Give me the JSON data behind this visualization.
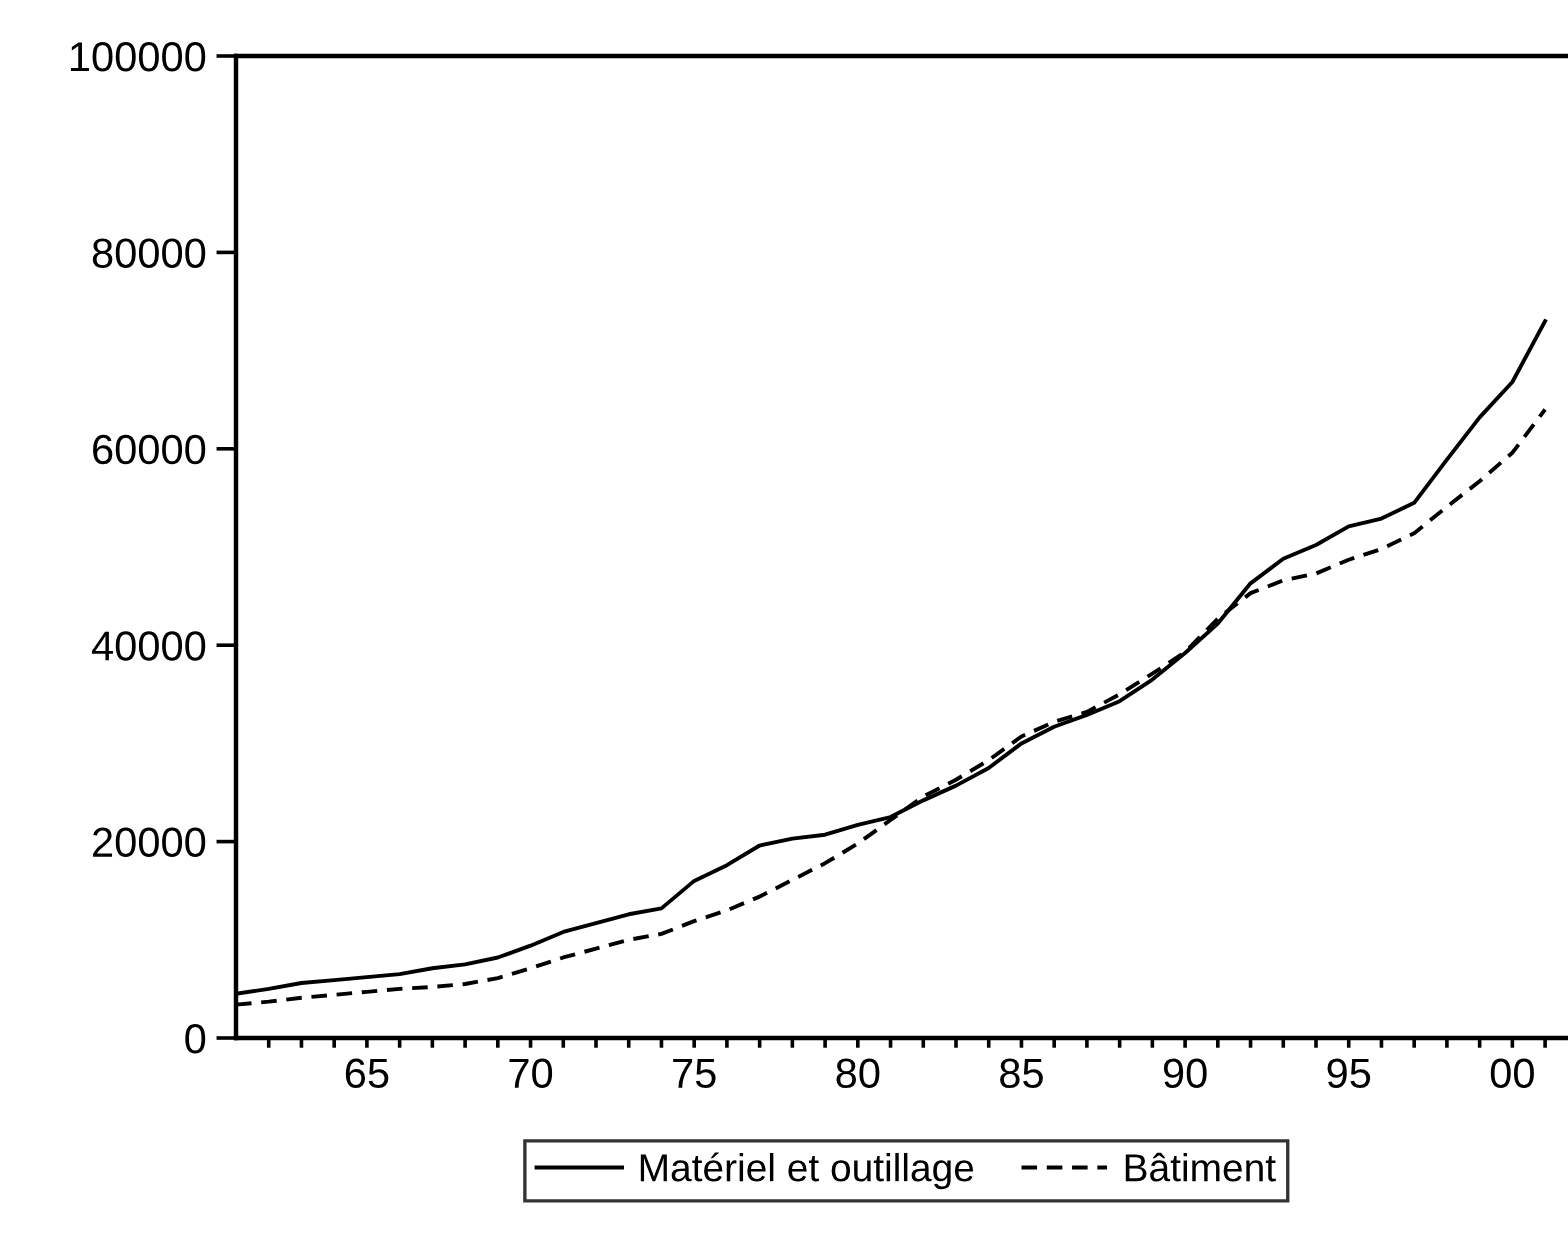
{
  "chart_data": {
    "type": "line",
    "x": [
      1961,
      1962,
      1963,
      1964,
      1965,
      1966,
      1967,
      1968,
      1969,
      1970,
      1971,
      1972,
      1973,
      1974,
      1975,
      1976,
      1977,
      1978,
      1979,
      1980,
      1981,
      1982,
      1983,
      1984,
      1985,
      1986,
      1987,
      1988,
      1989,
      1990,
      1991,
      1992,
      1993,
      1994,
      1995,
      1996,
      1997,
      1998,
      1999,
      2000,
      2001
    ],
    "series": [
      {
        "name": "Matériel et outillage",
        "color": "#000000",
        "line_style": "solid",
        "values": [
          4500,
          5000,
          5600,
          5900,
          6200,
          6500,
          7100,
          7500,
          8200,
          9400,
          10800,
          11700,
          12600,
          13200,
          16000,
          17600,
          19600,
          20300,
          20700,
          21700,
          22500,
          24200,
          25700,
          27500,
          30000,
          31700,
          32900,
          34300,
          36500,
          39200,
          42200,
          46300,
          48800,
          50200,
          52100,
          52900,
          54500,
          58900,
          63200,
          66800,
          73000
        ]
      },
      {
        "name": "Bâtiment",
        "color": "#000000",
        "line_style": "dashed",
        "values": [
          3400,
          3700,
          4100,
          4400,
          4700,
          5000,
          5200,
          5500,
          6100,
          7100,
          8200,
          9100,
          10000,
          10600,
          11900,
          13000,
          14400,
          16100,
          17800,
          19800,
          22200,
          24600,
          26300,
          28300,
          30700,
          32200,
          33200,
          35000,
          37100,
          39300,
          42700,
          45300,
          46600,
          47300,
          48700,
          49800,
          51400,
          54100,
          56700,
          59600,
          64000
        ]
      }
    ],
    "xlim": [
      1961,
      2001.7
    ],
    "xticks": [
      {
        "value": 1962,
        "label": null
      },
      {
        "value": 1963,
        "label": null
      },
      {
        "value": 1964,
        "label": null
      },
      {
        "value": 1965,
        "label": "65"
      },
      {
        "value": 1966,
        "label": null
      },
      {
        "value": 1967,
        "label": null
      },
      {
        "value": 1968,
        "label": null
      },
      {
        "value": 1969,
        "label": null
      },
      {
        "value": 1970,
        "label": "70"
      },
      {
        "value": 1971,
        "label": null
      },
      {
        "value": 1972,
        "label": null
      },
      {
        "value": 1973,
        "label": null
      },
      {
        "value": 1974,
        "label": null
      },
      {
        "value": 1975,
        "label": "75"
      },
      {
        "value": 1976,
        "label": null
      },
      {
        "value": 1977,
        "label": null
      },
      {
        "value": 1978,
        "label": null
      },
      {
        "value": 1979,
        "label": null
      },
      {
        "value": 1980,
        "label": "80"
      },
      {
        "value": 1981,
        "label": null
      },
      {
        "value": 1982,
        "label": null
      },
      {
        "value": 1983,
        "label": null
      },
      {
        "value": 1984,
        "label": null
      },
      {
        "value": 1985,
        "label": "85"
      },
      {
        "value": 1986,
        "label": null
      },
      {
        "value": 1987,
        "label": null
      },
      {
        "value": 1988,
        "label": null
      },
      {
        "value": 1989,
        "label": null
      },
      {
        "value": 1990,
        "label": "90"
      },
      {
        "value": 1991,
        "label": null
      },
      {
        "value": 1992,
        "label": null
      },
      {
        "value": 1993,
        "label": null
      },
      {
        "value": 1994,
        "label": null
      },
      {
        "value": 1995,
        "label": "95"
      },
      {
        "value": 1996,
        "label": null
      },
      {
        "value": 1997,
        "label": null
      },
      {
        "value": 1998,
        "label": null
      },
      {
        "value": 1999,
        "label": null
      },
      {
        "value": 2000,
        "label": "00"
      },
      {
        "value": 2001,
        "label": null
      }
    ],
    "ylim": [
      0,
      100000
    ],
    "yticks": [
      0,
      20000,
      40000,
      60000,
      80000,
      100000
    ],
    "grid": false,
    "legend": "bottom"
  }
}
